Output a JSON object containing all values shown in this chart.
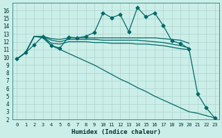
{
  "xlabel": "Humidex (Indice chaleur)",
  "background_color": "#cceee8",
  "grid_color": "#aad4cc",
  "line_color": "#006868",
  "xlim": [
    -0.5,
    23.5
  ],
  "ylim": [
    2,
    17
  ],
  "x_ticks": [
    0,
    1,
    2,
    3,
    4,
    5,
    6,
    7,
    8,
    9,
    10,
    11,
    12,
    13,
    14,
    15,
    16,
    17,
    18,
    19,
    20,
    21,
    22,
    23
  ],
  "y_ticks": [
    2,
    3,
    4,
    5,
    6,
    7,
    8,
    9,
    10,
    11,
    12,
    13,
    14,
    15,
    16
  ],
  "series": [
    {
      "x": [
        0,
        1,
        2,
        3,
        4,
        5,
        6,
        7,
        8,
        9,
        10,
        11,
        12,
        13,
        14,
        15,
        16,
        17,
        18,
        19,
        20,
        21,
        22,
        23
      ],
      "y": [
        9.8,
        10.6,
        11.6,
        12.7,
        11.5,
        11.2,
        12.6,
        12.5,
        12.7,
        13.2,
        15.7,
        15.1,
        15.5,
        13.3,
        16.4,
        15.2,
        15.7,
        14.1,
        12.1,
        11.8,
        11.1,
        5.3,
        3.5,
        2.2
      ],
      "marker": "D",
      "markersize": 2.5,
      "linewidth": 0.9
    },
    {
      "x": [
        0,
        1,
        2,
        3,
        4,
        5,
        6,
        7,
        8,
        9,
        10,
        11,
        12,
        13,
        14,
        15,
        16,
        17,
        18,
        19,
        20
      ],
      "y": [
        9.8,
        10.6,
        12.7,
        12.7,
        12.4,
        12.3,
        12.5,
        12.5,
        12.5,
        12.5,
        12.5,
        12.5,
        12.5,
        12.5,
        12.5,
        12.5,
        12.5,
        12.4,
        12.3,
        12.2,
        11.8
      ],
      "marker": null,
      "linewidth": 0.9
    },
    {
      "x": [
        0,
        1,
        2,
        3,
        4,
        5,
        6,
        7,
        8,
        9,
        10,
        11,
        12,
        13,
        14,
        15,
        16,
        17,
        18,
        19,
        20
      ],
      "y": [
        9.8,
        10.6,
        12.7,
        12.7,
        12.2,
        12.0,
        12.3,
        12.3,
        12.3,
        12.3,
        12.2,
        12.2,
        12.2,
        12.2,
        12.2,
        12.1,
        12.0,
        11.9,
        11.7,
        11.5,
        11.2
      ],
      "marker": null,
      "linewidth": 0.9
    },
    {
      "x": [
        0,
        1,
        2,
        3,
        4,
        5,
        6,
        7,
        8,
        9,
        10,
        11,
        12,
        13,
        14,
        15,
        16,
        17,
        18,
        19,
        20
      ],
      "y": [
        9.8,
        10.6,
        12.7,
        12.7,
        11.8,
        11.7,
        12.0,
        12.0,
        12.0,
        11.9,
        11.9,
        11.8,
        11.8,
        11.8,
        11.7,
        11.7,
        11.6,
        11.5,
        11.3,
        11.1,
        11.0
      ],
      "marker": null,
      "linewidth": 0.9
    },
    {
      "x": [
        0,
        1,
        2,
        3,
        4,
        5,
        6,
        7,
        8,
        9,
        10,
        11,
        12,
        13,
        14,
        15,
        16,
        17,
        18,
        19,
        20,
        21,
        22,
        23
      ],
      "y": [
        9.8,
        10.6,
        12.7,
        12.5,
        11.5,
        11.0,
        10.5,
        10.0,
        9.5,
        9.0,
        8.4,
        7.8,
        7.2,
        6.7,
        6.1,
        5.6,
        5.0,
        4.5,
        4.0,
        3.5,
        3.0,
        2.8,
        2.5,
        2.2
      ],
      "marker": null,
      "linewidth": 0.9
    }
  ],
  "figwidth": 3.2,
  "figheight": 2.0,
  "dpi": 100
}
